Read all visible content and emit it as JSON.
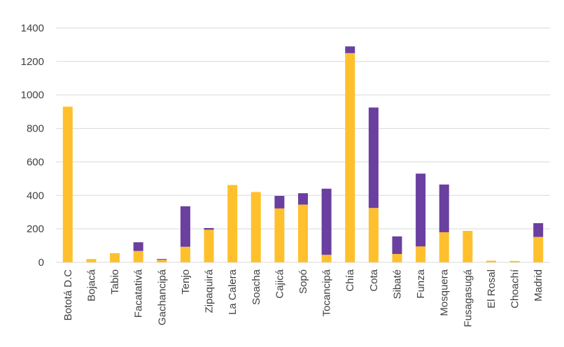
{
  "chart_data": {
    "type": "bar",
    "stacked": true,
    "categories": [
      "Bototá D.C",
      "Bojacá",
      "Tabio",
      "Facatativá",
      "Gachancipá",
      "Tenjo",
      "Zipaquirá",
      "La Calera",
      "Soacha",
      "Cajicá",
      "Sopó",
      "Tocancipá",
      "Chía",
      "Cota",
      "Sibaté",
      "Funza",
      "Mosquera",
      "Fusagasugá",
      "El Rosal",
      "Choachí",
      "Madrid"
    ],
    "series": [
      {
        "color": "#FFC02D",
        "values": [
          930,
          20,
          55,
          68,
          15,
          93,
          195,
          462,
          420,
          322,
          345,
          45,
          1250,
          325,
          50,
          95,
          180,
          188,
          10,
          8,
          152
        ]
      },
      {
        "color": "#6A3FA0",
        "values": [
          0,
          0,
          0,
          52,
          5,
          242,
          10,
          0,
          0,
          75,
          68,
          395,
          40,
          600,
          105,
          435,
          285,
          0,
          0,
          0,
          82
        ]
      }
    ],
    "yticks": [
      "0",
      "200",
      "400",
      "600",
      "800",
      "1000",
      "1200",
      "1400"
    ],
    "ylim": [
      0,
      1400
    ],
    "grid": true,
    "legend": "none"
  }
}
